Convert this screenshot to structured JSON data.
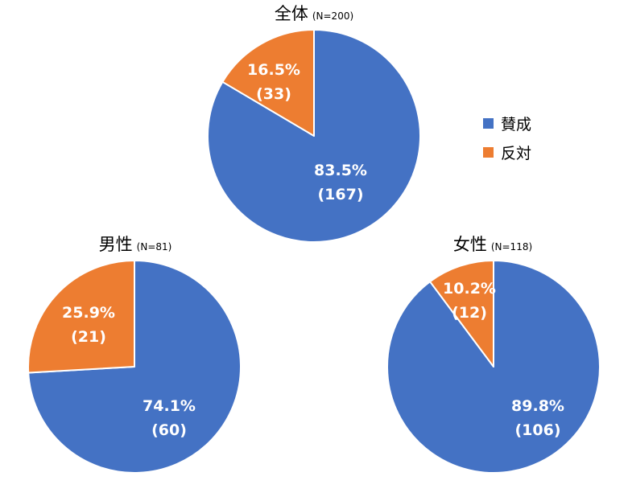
{
  "chart_data": [
    {
      "type": "pie",
      "title": "全体",
      "subtitle": "(N=200)",
      "slices": [
        {
          "name": "賛成",
          "value": 83.5,
          "count": 167,
          "pct_label": "83.5%",
          "count_label": "(167)",
          "color": "#4472C4"
        },
        {
          "name": "反対",
          "value": 16.5,
          "count": 33,
          "pct_label": "16.5%",
          "count_label": "(33)",
          "color": "#ED7D31"
        }
      ]
    },
    {
      "type": "pie",
      "title": "男性",
      "subtitle": "(N=81)",
      "slices": [
        {
          "name": "賛成",
          "value": 74.1,
          "count": 60,
          "pct_label": "74.1%",
          "count_label": "(60)",
          "color": "#4472C4"
        },
        {
          "name": "反対",
          "value": 25.9,
          "count": 21,
          "pct_label": "25.9%",
          "count_label": "(21)",
          "color": "#ED7D31"
        }
      ]
    },
    {
      "type": "pie",
      "title": "女性",
      "subtitle": "(N=118)",
      "slices": [
        {
          "name": "賛成",
          "value": 89.8,
          "count": 106,
          "pct_label": "89.8%",
          "count_label": "(106)",
          "color": "#4472C4"
        },
        {
          "name": "反対",
          "value": 10.2,
          "count": 12,
          "pct_label": "10.2%",
          "count_label": "(12)",
          "color": "#ED7D31"
        }
      ]
    }
  ],
  "legend": {
    "placement": "right",
    "items": [
      {
        "label": "賛成",
        "color": "#4472C4"
      },
      {
        "label": "反対",
        "color": "#ED7D31"
      }
    ]
  }
}
